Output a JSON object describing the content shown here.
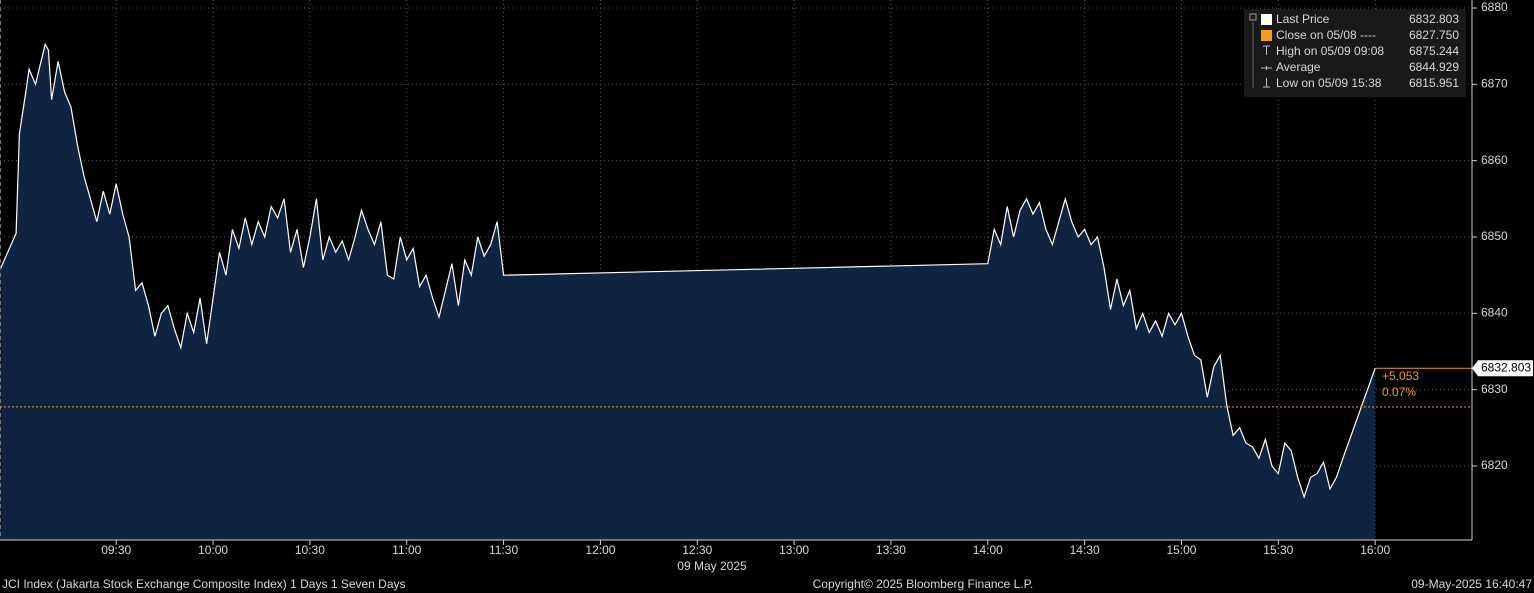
{
  "chart_data": {
    "type": "area",
    "x": [
      "08:54",
      "08:59",
      "09:00",
      "09:02",
      "09:03",
      "09:05",
      "09:08",
      "09:09",
      "09:10",
      "09:12",
      "09:14",
      "09:16",
      "09:18",
      "09:20",
      "09:22",
      "09:24",
      "09:26",
      "09:28",
      "09:30",
      "09:32",
      "09:34",
      "09:36",
      "09:38",
      "09:40",
      "09:42",
      "09:44",
      "09:46",
      "09:48",
      "09:50",
      "09:52",
      "09:54",
      "09:56",
      "09:58",
      "10:00",
      "10:02",
      "10:04",
      "10:06",
      "10:08",
      "10:10",
      "10:12",
      "10:14",
      "10:16",
      "10:18",
      "10:20",
      "10:22",
      "10:24",
      "10:26",
      "10:28",
      "10:30",
      "10:32",
      "10:34",
      "10:36",
      "10:38",
      "10:40",
      "10:42",
      "10:44",
      "10:46",
      "10:48",
      "10:50",
      "10:52",
      "10:54",
      "10:56",
      "10:58",
      "11:00",
      "11:02",
      "11:04",
      "11:06",
      "11:08",
      "11:10",
      "11:12",
      "11:14",
      "11:16",
      "11:18",
      "11:20",
      "11:22",
      "11:24",
      "11:26",
      "11:28",
      "11:30",
      "14:00",
      "14:02",
      "14:04",
      "14:06",
      "14:08",
      "14:10",
      "14:12",
      "14:14",
      "14:16",
      "14:18",
      "14:20",
      "14:22",
      "14:24",
      "14:26",
      "14:28",
      "14:30",
      "14:32",
      "14:34",
      "14:36",
      "14:38",
      "14:40",
      "14:42",
      "14:44",
      "14:46",
      "14:48",
      "14:50",
      "14:52",
      "14:54",
      "14:56",
      "14:58",
      "15:00",
      "15:02",
      "15:04",
      "15:06",
      "15:08",
      "15:10",
      "15:12",
      "15:14",
      "15:16",
      "15:18",
      "15:20",
      "15:22",
      "15:24",
      "15:26",
      "15:28",
      "15:30",
      "15:32",
      "15:34",
      "15:36",
      "15:38",
      "15:40",
      "15:42",
      "15:44",
      "15:46",
      "15:48",
      "15:50",
      "16:00"
    ],
    "series": [
      {
        "name": "Last Price",
        "color": "#ffffff",
        "values": [
          6845.7,
          6850.5,
          6863.5,
          6869,
          6872,
          6870,
          6875.244,
          6874.5,
          6868,
          6873,
          6869,
          6867,
          6862,
          6858,
          6855,
          6852,
          6856,
          6853,
          6857,
          6853,
          6850,
          6843,
          6844,
          6841,
          6837,
          6840,
          6841,
          6838,
          6835.5,
          6840,
          6837.5,
          6842,
          6836,
          6842,
          6848,
          6845,
          6851,
          6848.5,
          6852.5,
          6849,
          6852,
          6850,
          6854,
          6852.5,
          6855,
          6848,
          6851,
          6846,
          6850,
          6855,
          6847,
          6850,
          6848,
          6849.5,
          6847,
          6850,
          6853.5,
          6851,
          6849,
          6852,
          6845,
          6844.5,
          6850,
          6847,
          6848.5,
          6843.5,
          6845,
          6842,
          6839.5,
          6843,
          6846.5,
          6841,
          6847,
          6845,
          6850,
          6847.5,
          6849,
          6852,
          6845,
          6846.5,
          6851,
          6849,
          6854,
          6850,
          6853.5,
          6855,
          6853,
          6854.5,
          6851,
          6849,
          6852,
          6855,
          6852,
          6850,
          6851,
          6849,
          6850,
          6846,
          6840.5,
          6844.5,
          6841,
          6843,
          6838,
          6840,
          6837.5,
          6839,
          6837,
          6840,
          6838.5,
          6840,
          6837,
          6834.5,
          6833.9,
          6829,
          6833,
          6834.5,
          6828,
          6824,
          6825,
          6823,
          6822.5,
          6821,
          6823.5,
          6820,
          6819,
          6823,
          6822,
          6818.5,
          6815.951,
          6818.5,
          6819,
          6820.5,
          6817,
          6818.5,
          6821,
          6832.803
        ]
      }
    ],
    "fill_color": "#0e2440",
    "xlim": [
      "08:54",
      "16:30"
    ],
    "xticks": [
      "09:30",
      "10:00",
      "10:30",
      "11:00",
      "11:30",
      "12:00",
      "12:30",
      "13:00",
      "13:30",
      "14:00",
      "14:30",
      "15:00",
      "15:30",
      "16:00"
    ],
    "x_date_label": "09 May 2025",
    "ylim": [
      6810.3,
      6881.05
    ],
    "yticks": [
      6820,
      6830,
      6840,
      6850,
      6860,
      6870,
      6880
    ],
    "grid": true,
    "close_line": {
      "value": 6827.75,
      "color": "#f39c1f"
    },
    "change_labels": [
      {
        "value": 5.053,
        "label": "+5.053"
      },
      {
        "value": 0.07,
        "label": "0.07%"
      }
    ],
    "legend": [
      {
        "name": "Last Price",
        "value": 6832.803
      },
      {
        "name": "Close on 05/08 ----",
        "value": {
          "value": 6827.75,
          "label": "6827.750"
        }
      },
      {
        "name": "High on 05/09 09:08",
        "value": 6875.244
      },
      {
        "name": "Average",
        "value": 6844.929
      },
      {
        "name": "Low on 05/09 15:38",
        "value": 6815.951
      }
    ],
    "footer": {
      "left": "JCI Index (Jakarta Stock Exchange Composite Index) 1 Days 1 Seven Days",
      "center": "Copyright© 2025 Bloomberg Finance L.P.",
      "right": "09-May-2025 16:40:47"
    }
  }
}
